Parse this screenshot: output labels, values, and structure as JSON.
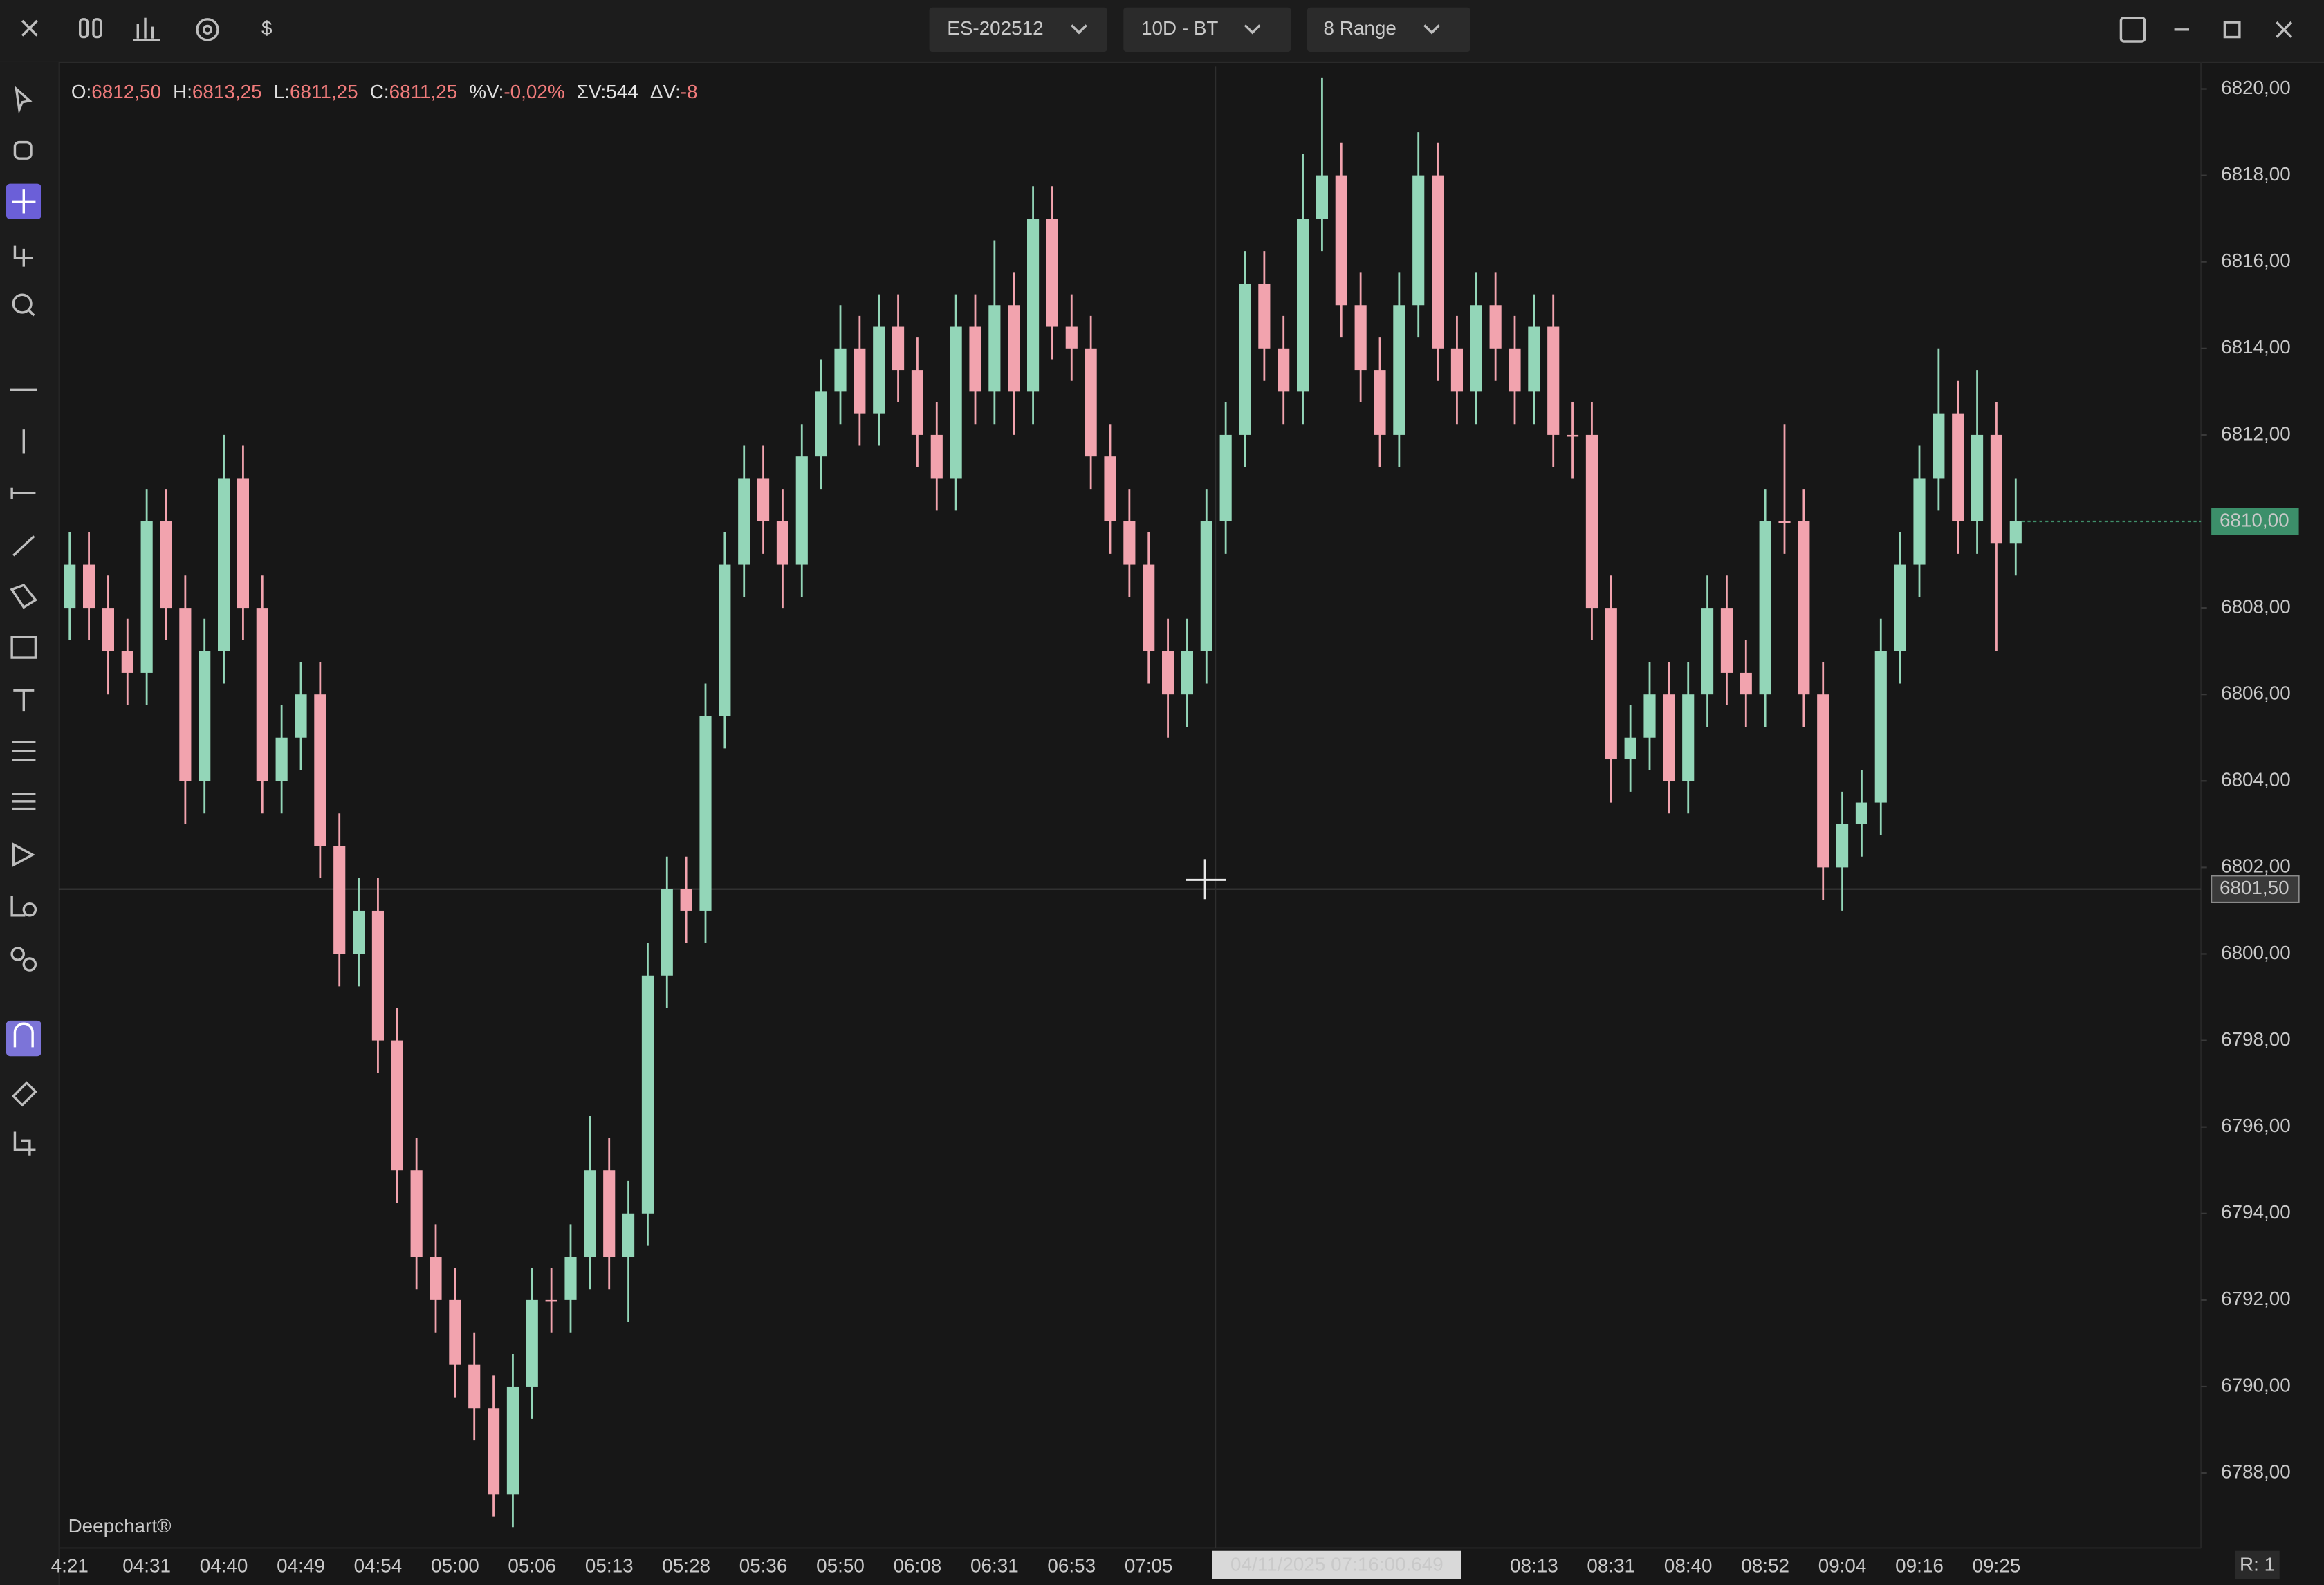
{
  "top_bar": {
    "currency_icon": "$",
    "symbol": "ES-202512",
    "timeframe": "10D - BT",
    "chart_type": "8 Range"
  },
  "chart_data": {
    "type": "candlestick",
    "info": [
      {
        "label": "O:",
        "value": "6812,50",
        "color": "#f07b7b"
      },
      {
        "label": "H:",
        "value": "6813,25",
        "color": "#f07b7b"
      },
      {
        "label": "L:",
        "value": "6811,25",
        "color": "#f07b7b"
      },
      {
        "label": "C:",
        "value": "6811,25",
        "color": "#f07b7b"
      },
      {
        "label": "%V:",
        "value": "-0,02%",
        "color": "#f07b7b"
      },
      {
        "label": "ΣV:",
        "value": "544",
        "color": "#e8e8e8"
      },
      {
        "label": "ΔV:",
        "value": "-8",
        "color": "#f07b7b"
      }
    ],
    "categories": [
      "4:21",
      null,
      null,
      null,
      "04:31",
      null,
      null,
      null,
      "04:40",
      null,
      null,
      null,
      "04:49",
      null,
      null,
      null,
      "04:54",
      null,
      null,
      null,
      "05:00",
      null,
      null,
      null,
      "05:06",
      null,
      null,
      null,
      "05:13",
      null,
      null,
      null,
      "05:28",
      null,
      null,
      null,
      "05:36",
      null,
      null,
      null,
      "05:50",
      null,
      null,
      null,
      "06:08",
      null,
      null,
      null,
      "06:31",
      null,
      null,
      null,
      "06:53",
      null,
      null,
      null,
      "07:05",
      null,
      null,
      null,
      null,
      null,
      null,
      null,
      null,
      null,
      null,
      null,
      null,
      null,
      null,
      null,
      null,
      null,
      null,
      null,
      "08:13",
      null,
      null,
      null,
      "08:31",
      null,
      null,
      null,
      "08:40",
      null,
      null,
      null,
      "08:52",
      null,
      null,
      null,
      "09:04",
      null,
      null,
      null,
      "09:16",
      null,
      null,
      null,
      "09:25",
      null
    ],
    "open": [
      6808,
      6809,
      6808,
      6807,
      6806.5,
      6810,
      6808,
      6804,
      6807,
      6811,
      6808,
      6804,
      6805,
      6806,
      6802.5,
      6800,
      6801,
      6798,
      6795,
      6793,
      6792,
      6790.5,
      6789.5,
      6787.5,
      6790,
      6792,
      6792,
      6793,
      6795,
      6793,
      6794,
      6799.5,
      6801.5,
      6801,
      6805.5,
      6809,
      6811,
      6810,
      6809,
      6811.5,
      6813,
      6814,
      6812.5,
      6814.5,
      6813.5,
      6812,
      6811,
      6814.5,
      6813,
      6815,
      6813,
      6817,
      6814.5,
      6814,
      6811.5,
      6810,
      6809,
      6807,
      6806,
      6807,
      6810,
      6812,
      6815.5,
      6814,
      6813,
      6817,
      6818,
      6815,
      6813.5,
      6812,
      6815,
      6818,
      6814,
      6813,
      6815,
      6814,
      6813,
      6814.5,
      6812,
      6812,
      6808,
      6804.5,
      6805,
      6806,
      6804,
      6806,
      6808,
      6806.5,
      6806,
      6810,
      6810,
      6806,
      6802,
      6803,
      6803.5,
      6807,
      6809,
      6811,
      6812.5,
      6810,
      6812,
      6809.5
    ],
    "high": [
      6809.75,
      6809.75,
      6808.75,
      6807.75,
      6810.75,
      6810.75,
      6808.75,
      6807.75,
      6812,
      6811.75,
      6808.75,
      6805.75,
      6806.75,
      6806.75,
      6803.25,
      6801.75,
      6801.75,
      6798.75,
      6795.75,
      6793.75,
      6792.75,
      6791.25,
      6790.25,
      6790.75,
      6792.75,
      6792.75,
      6793.75,
      6796.25,
      6795.75,
      6794.75,
      6800.25,
      6802.25,
      6802.25,
      6806.25,
      6809.75,
      6811.75,
      6811.75,
      6810.75,
      6812.25,
      6813.75,
      6815,
      6814.75,
      6815.25,
      6815.25,
      6814.25,
      6812.75,
      6815.25,
      6815.25,
      6816.5,
      6815.75,
      6817.75,
      6817.75,
      6815.25,
      6814.75,
      6812.25,
      6810.75,
      6809.75,
      6807.75,
      6807.75,
      6810.75,
      6812.75,
      6816.25,
      6816.25,
      6814.75,
      6818.5,
      6820.25,
      6818.75,
      6815.75,
      6814.25,
      6815.75,
      6819,
      6818.75,
      6814.75,
      6815.75,
      6815.75,
      6814.75,
      6815.25,
      6815.25,
      6812.75,
      6812.75,
      6808.75,
      6805.75,
      6806.75,
      6806.75,
      6806.75,
      6808.75,
      6808.75,
      6807.25,
      6810.75,
      6812.25,
      6810.75,
      6806.75,
      6803.75,
      6804.25,
      6807.75,
      6809.75,
      6811.75,
      6814,
      6813.25,
      6813.5,
      6812.75,
      6811
    ],
    "low": [
      6807.25,
      6807.25,
      6806,
      6805.75,
      6805.75,
      6807.25,
      6803,
      6803.25,
      6806.25,
      6807.25,
      6803.25,
      6803.25,
      6804.25,
      6801.75,
      6799.25,
      6799.25,
      6797.25,
      6794.25,
      6792.25,
      6791.25,
      6789.75,
      6788.75,
      6787,
      6786.75,
      6789.25,
      6791.25,
      6791.25,
      6792.25,
      6792.25,
      6791.5,
      6793.25,
      6798.75,
      6800.25,
      6800.25,
      6804.75,
      6808.25,
      6809.25,
      6808,
      6808.25,
      6810.75,
      6812.25,
      6811.75,
      6811.75,
      6812.75,
      6811.25,
      6810.25,
      6810.25,
      6812.25,
      6812.25,
      6812,
      6812.25,
      6813.75,
      6813.25,
      6810.75,
      6809.25,
      6808.25,
      6806.25,
      6805,
      6805.25,
      6806.25,
      6809.25,
      6811.25,
      6813.25,
      6812.25,
      6812.25,
      6816.25,
      6814.25,
      6812.75,
      6811.25,
      6811.25,
      6814.25,
      6813.25,
      6812.25,
      6812.25,
      6813.25,
      6812.25,
      6812.25,
      6811.25,
      6811,
      6807.25,
      6803.5,
      6803.75,
      6804.25,
      6803.25,
      6803.25,
      6805.25,
      6805.75,
      6805.25,
      6805.25,
      6809.25,
      6805.25,
      6801.25,
      6801,
      6802.25,
      6802.75,
      6806.25,
      6808.25,
      6810.25,
      6809.25,
      6809.25,
      6807,
      6808.75
    ],
    "close": [
      6809,
      6808,
      6807,
      6806.5,
      6810,
      6808,
      6804,
      6807,
      6811,
      6808,
      6804,
      6805,
      6806,
      6802.5,
      6800,
      6801,
      6798,
      6795,
      6793,
      6792,
      6790.5,
      6789.5,
      6787.5,
      6790,
      6792,
      6792,
      6793,
      6795,
      6793,
      6794,
      6799.5,
      6801.5,
      6801,
      6805.5,
      6809,
      6811,
      6810,
      6809,
      6811.5,
      6813,
      6814,
      6812.5,
      6814.5,
      6813.5,
      6812,
      6811,
      6814.5,
      6813,
      6815,
      6813,
      6817,
      6814.5,
      6814,
      6811.5,
      6810,
      6809,
      6807,
      6806,
      6807,
      6810,
      6812,
      6815.5,
      6814,
      6813,
      6817,
      6818,
      6815,
      6813.5,
      6812,
      6815,
      6818,
      6814,
      6813,
      6815,
      6814,
      6813,
      6814.5,
      6812,
      6812,
      6808,
      6804.5,
      6805,
      6806,
      6804,
      6806,
      6808,
      6806.5,
      6806,
      6810,
      6810,
      6806,
      6802,
      6803,
      6803.5,
      6807,
      6809,
      6811,
      6812.5,
      6810,
      6812,
      6809.5,
      6810
    ],
    "up_color": "#93d6b8",
    "down_color": "#f2a3ae",
    "ylim": [
      6786.25,
      6820.5
    ],
    "yticks": [
      {
        "value": 6820,
        "label": "6820,00"
      },
      {
        "value": 6818,
        "label": "6818,00"
      },
      {
        "value": 6816,
        "label": "6816,00"
      },
      {
        "value": 6814,
        "label": "6814,00"
      },
      {
        "value": 6812,
        "label": "6812,00"
      },
      {
        "value": 6808,
        "label": "6808,00"
      },
      {
        "value": 6806,
        "label": "6806,00"
      },
      {
        "value": 6804,
        "label": "6804,00"
      },
      {
        "value": 6802,
        "label": "6802,00"
      },
      {
        "value": 6800,
        "label": "6800,00"
      },
      {
        "value": 6798,
        "label": "6798,00"
      },
      {
        "value": 6796,
        "label": "6796,00"
      },
      {
        "value": 6794,
        "label": "6794,00"
      },
      {
        "value": 6792,
        "label": "6792,00"
      },
      {
        "value": 6790,
        "label": "6790,00"
      },
      {
        "value": 6788,
        "label": "6788,00"
      }
    ],
    "last_price": {
      "value": 6810,
      "label": "6810,00"
    },
    "crosshair": {
      "value": 6801.5,
      "label": "6801,50",
      "time_label": "04/11/2025 07:16:00.649"
    },
    "watermark": "Deepchart®",
    "range_label": "R: 1"
  }
}
